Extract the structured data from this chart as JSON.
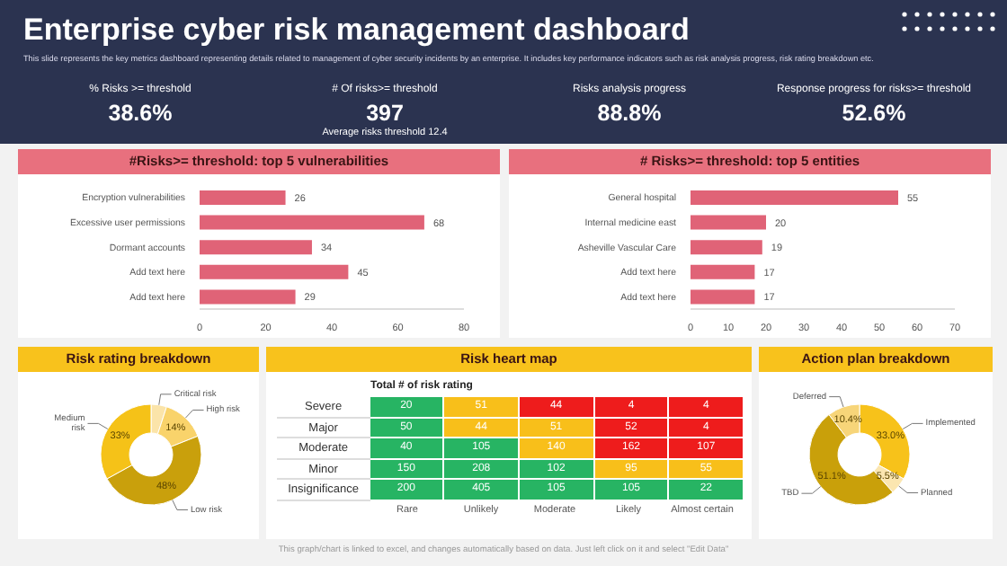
{
  "chart_data": [
    {
      "type": "other",
      "title": "Enterprise cyber risk management dashboard",
      "subtitle": "This slide represents the key metrics dashboard representing details related to management of cyber security incidents by an enterprise. It includes key performance indicators such as risk analysis progress, risk rating breakdown etc.",
      "categories": [
        "% Risks >= threshold",
        "# Of risks>= threshold",
        "Risks analysis progress",
        "Response progress for risks>= threshold"
      ],
      "value_labels": [
        "38.6%",
        "397",
        "88.8%",
        "52.6%"
      ],
      "annotations": [
        "Average risks threshold 12.4",
        "This graph/chart is linked to excel, and changes automatically based on data. Just left click on it and select \"Edit Data\""
      ]
    },
    {
      "type": "bar",
      "orientation": "horizontal",
      "title": "#Risks>= threshold: top 5 vulnerabilities",
      "categories": [
        "Encryption vulnerabilities",
        "Excessive user permissions",
        "Dormant accounts",
        "Add text here",
        "Add text here"
      ],
      "values": [
        26,
        68,
        34,
        45,
        29
      ],
      "color": "#e06377",
      "xlim": [
        0,
        80
      ],
      "xticks": [
        0,
        20,
        40,
        60,
        80
      ],
      "data_labels": true
    },
    {
      "type": "bar",
      "orientation": "horizontal",
      "title": "# Risks>= threshold: top 5 entities",
      "categories": [
        "General hospital",
        "Internal medicine east",
        "Asheville Vascular Care",
        "Add text here",
        "Add text here"
      ],
      "values": [
        55,
        20,
        19,
        17,
        17
      ],
      "color": "#e06377",
      "xlim": [
        0,
        70
      ],
      "xticks": [
        0,
        10,
        20,
        30,
        40,
        50,
        60,
        70
      ],
      "data_labels": true
    },
    {
      "type": "donut",
      "title": "Risk rating breakdown",
      "categories": [
        "Critical risk",
        "High risk",
        "Low risk",
        "Medium risk"
      ],
      "values": [
        5,
        14,
        48,
        33
      ],
      "value_labels": [
        null,
        "14%",
        "48%",
        "33%"
      ],
      "colors": [
        "#fbe4a9",
        "#f9d36b",
        "#c9a00c",
        "#f5c218"
      ]
    },
    {
      "type": "heatmap",
      "title": "Risk heart map",
      "subtitle": "Total # of risk rating",
      "data_labels": true,
      "categories": [
        "Rare",
        "Unlikely",
        "Moderate",
        "Likely",
        "Almost certain"
      ],
      "y_categories": [
        "Severe",
        "Major",
        "Moderate",
        "Minor",
        "Insignificance"
      ],
      "cells": [
        [
          20,
          51,
          44,
          4,
          4
        ],
        [
          50,
          44,
          51,
          52,
          4
        ],
        [
          40,
          105,
          140,
          162,
          107
        ],
        [
          150,
          208,
          102,
          95,
          55
        ],
        [
          200,
          405,
          105,
          105,
          22
        ]
      ],
      "colors": [
        [
          "#27b463",
          "#f8bf1a",
          "#ee1c1c",
          "#ee1c1c",
          "#ee1c1c"
        ],
        [
          "#27b463",
          "#f8bf1a",
          "#f8bf1a",
          "#ee1c1c",
          "#ee1c1c"
        ],
        [
          "#27b463",
          "#27b463",
          "#f8bf1a",
          "#ee1c1c",
          "#ee1c1c"
        ],
        [
          "#27b463",
          "#27b463",
          "#27b463",
          "#f8bf1a",
          "#f8bf1a"
        ],
        [
          "#27b463",
          "#27b463",
          "#27b463",
          "#27b463",
          "#27b463"
        ]
      ]
    },
    {
      "type": "donut",
      "title": "Action plan breakdown",
      "categories": [
        "Implemented",
        "Planned",
        "TBD",
        "Deferred"
      ],
      "values": [
        33.0,
        5.5,
        51.1,
        10.4
      ],
      "value_labels": [
        "33.0%",
        "5.5%",
        "51.1%",
        "10.4%"
      ],
      "colors": [
        "#f7c21a",
        "#fbe6b0",
        "#c9a00a",
        "#f7d579"
      ]
    }
  ]
}
